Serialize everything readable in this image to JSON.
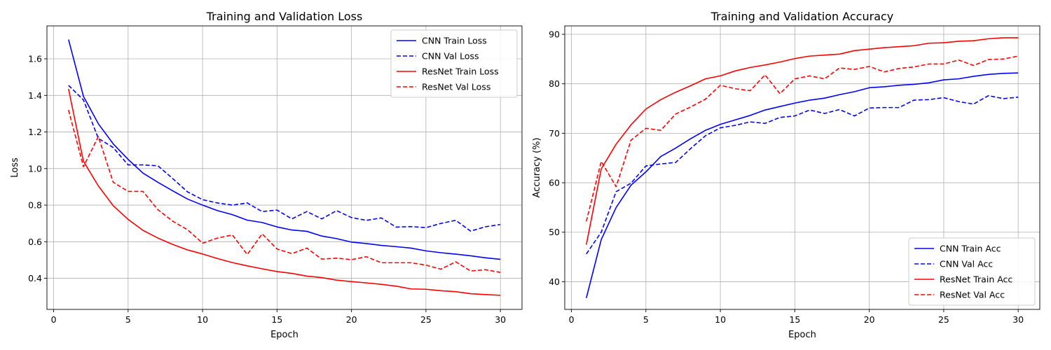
{
  "chart_data": [
    {
      "type": "line",
      "title": "Training and Validation Loss",
      "xlabel": "Epoch",
      "ylabel": "Loss",
      "xlim": [
        -0.45,
        31.45
      ],
      "ylim": [
        0.23,
        1.78
      ],
      "xticks": [
        0,
        5,
        10,
        15,
        20,
        25,
        30
      ],
      "yticks": [
        0.4,
        0.6,
        0.8,
        1.0,
        1.2,
        1.4,
        1.6
      ],
      "ytick_decimals": 1,
      "grid": true,
      "legend": "top-right",
      "x": [
        1,
        2,
        3,
        4,
        5,
        6,
        7,
        8,
        9,
        10,
        11,
        12,
        13,
        14,
        15,
        16,
        17,
        18,
        19,
        20,
        21,
        22,
        23,
        24,
        25,
        26,
        27,
        28,
        29,
        30
      ],
      "series": [
        {
          "name": "CNN Train Loss",
          "color": "#0000ff",
          "style": "solid",
          "values": [
            1.705,
            1.395,
            1.245,
            1.135,
            1.05,
            0.975,
            0.925,
            0.878,
            0.833,
            0.8,
            0.77,
            0.748,
            0.718,
            0.705,
            0.681,
            0.664,
            0.657,
            0.631,
            0.617,
            0.598,
            0.59,
            0.58,
            0.573,
            0.565,
            0.55,
            0.54,
            0.532,
            0.523,
            0.512,
            0.504
          ]
        },
        {
          "name": "CNN Val Loss",
          "color": "#0000ff",
          "style": "dashed",
          "values": [
            1.455,
            1.375,
            1.165,
            1.115,
            1.02,
            1.02,
            1.015,
            0.945,
            0.872,
            0.83,
            0.812,
            0.8,
            0.812,
            0.765,
            0.773,
            0.725,
            0.765,
            0.725,
            0.77,
            0.732,
            0.717,
            0.73,
            0.68,
            0.683,
            0.677,
            0.7,
            0.717,
            0.658,
            0.682,
            0.694
          ]
        },
        {
          "name": "ResNet Train Loss",
          "color": "#ff0000",
          "style": "solid",
          "values": [
            1.435,
            1.04,
            0.905,
            0.797,
            0.722,
            0.662,
            0.62,
            0.585,
            0.555,
            0.533,
            0.508,
            0.486,
            0.468,
            0.452,
            0.437,
            0.427,
            0.412,
            0.404,
            0.39,
            0.382,
            0.375,
            0.367,
            0.357,
            0.342,
            0.34,
            0.332,
            0.327,
            0.316,
            0.311,
            0.307
          ]
        },
        {
          "name": "ResNet Val Loss",
          "color": "#ff0000",
          "style": "dashed",
          "values": [
            1.32,
            1.01,
            1.175,
            0.925,
            0.875,
            0.875,
            0.775,
            0.712,
            0.665,
            0.592,
            0.62,
            0.637,
            0.53,
            0.643,
            0.56,
            0.535,
            0.565,
            0.505,
            0.51,
            0.502,
            0.518,
            0.485,
            0.485,
            0.485,
            0.472,
            0.45,
            0.49,
            0.44,
            0.447,
            0.432
          ]
        }
      ]
    },
    {
      "type": "line",
      "title": "Training and Validation Accuracy",
      "xlabel": "Epoch",
      "ylabel": "Accuracy (%)",
      "xlim": [
        -0.45,
        31.45
      ],
      "ylim": [
        34.4,
        91.7
      ],
      "xticks": [
        0,
        5,
        10,
        15,
        20,
        25,
        30
      ],
      "yticks": [
        40,
        50,
        60,
        70,
        80,
        90
      ],
      "ytick_decimals": 0,
      "grid": true,
      "legend": "bottom-right",
      "x": [
        1,
        2,
        3,
        4,
        5,
        6,
        7,
        8,
        9,
        10,
        11,
        12,
        13,
        14,
        15,
        16,
        17,
        18,
        19,
        20,
        21,
        22,
        23,
        24,
        25,
        26,
        27,
        28,
        29,
        30
      ],
      "series": [
        {
          "name": "CNN Train Acc",
          "color": "#0000ff",
          "style": "solid",
          "values": [
            36.7,
            48.5,
            55.0,
            59.5,
            62.2,
            65.3,
            67.0,
            68.9,
            70.6,
            71.8,
            72.7,
            73.6,
            74.7,
            75.4,
            76.1,
            76.7,
            77.1,
            77.8,
            78.4,
            79.2,
            79.4,
            79.7,
            79.9,
            80.2,
            80.8,
            81.0,
            81.5,
            81.9,
            82.1,
            82.2
          ]
        },
        {
          "name": "CNN Val Acc",
          "color": "#0000ff",
          "style": "dashed",
          "values": [
            45.6,
            50.0,
            58.2,
            59.9,
            63.4,
            63.8,
            64.1,
            66.9,
            69.5,
            71.1,
            71.6,
            72.3,
            72.0,
            73.2,
            73.5,
            74.7,
            74.0,
            74.8,
            73.5,
            75.1,
            75.2,
            75.2,
            76.7,
            76.8,
            77.2,
            76.4,
            75.9,
            77.6,
            77.0,
            77.3
          ]
        },
        {
          "name": "ResNet Train Acc",
          "color": "#ff0000",
          "style": "solid",
          "values": [
            47.5,
            62.8,
            67.8,
            71.7,
            74.9,
            76.8,
            78.3,
            79.6,
            81.0,
            81.6,
            82.6,
            83.3,
            83.8,
            84.4,
            85.1,
            85.6,
            85.8,
            86.0,
            86.7,
            87.0,
            87.3,
            87.5,
            87.7,
            88.2,
            88.3,
            88.6,
            88.7,
            89.1,
            89.3,
            89.3
          ]
        },
        {
          "name": "ResNet Val Acc",
          "color": "#ff0000",
          "style": "dashed",
          "values": [
            52.2,
            64.3,
            59.2,
            68.6,
            71.0,
            70.6,
            73.9,
            75.3,
            76.9,
            79.7,
            79.0,
            78.6,
            81.8,
            78.0,
            81.0,
            81.6,
            81.0,
            83.2,
            82.9,
            83.5,
            82.4,
            83.1,
            83.4,
            84.0,
            84.0,
            84.8,
            83.7,
            84.9,
            85.0,
            85.6
          ]
        }
      ]
    }
  ]
}
